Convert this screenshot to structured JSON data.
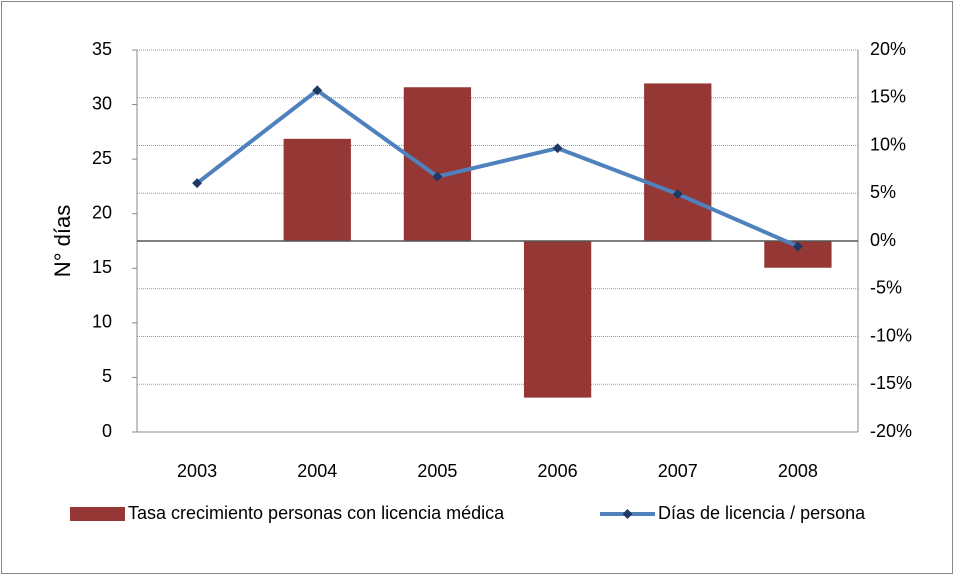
{
  "chart_data": {
    "type": "bar_line",
    "y_label": "N° días",
    "categories": [
      "2003",
      "2004",
      "2005",
      "2006",
      "2007",
      "2008"
    ],
    "series": [
      {
        "name": "Tasa crecimiento personas con licencia médica",
        "type": "bar",
        "axis": "y2",
        "color": "#953735",
        "values": [
          0,
          10.7,
          16.1,
          -16.4,
          16.5,
          -2.8
        ]
      },
      {
        "name": "Días de licencia / persona",
        "type": "line",
        "axis": "y",
        "color": "#4f81bd",
        "marker_color": "#1f3864",
        "values": [
          22.8,
          31.3,
          23.4,
          26.0,
          21.8,
          17.0
        ]
      }
    ],
    "ylim": [
      0,
      35
    ],
    "yticks": [
      0,
      5,
      10,
      15,
      20,
      25,
      30,
      35
    ],
    "y2lim": [
      -20,
      20
    ],
    "y2ticks": [
      {
        "value": -20,
        "label": "-20%"
      },
      {
        "value": -15,
        "label": "-15%"
      },
      {
        "value": -10,
        "label": "-10%"
      },
      {
        "value": -5,
        "label": "-5%"
      },
      {
        "value": 0,
        "label": "0%"
      },
      {
        "value": 5,
        "label": "5%"
      },
      {
        "value": 10,
        "label": "10%"
      },
      {
        "value": 15,
        "label": "15%"
      },
      {
        "value": 20,
        "label": "20%"
      }
    ],
    "grid": true,
    "legend": "bottom"
  }
}
